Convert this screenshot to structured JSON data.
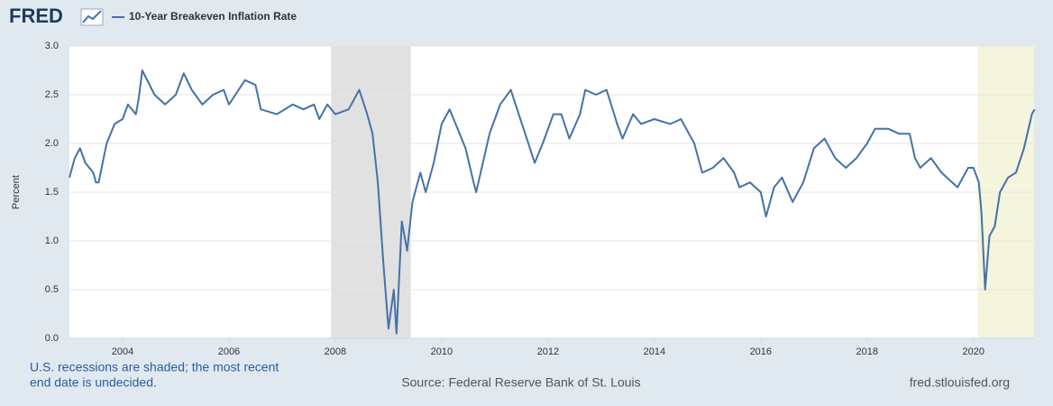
{
  "chart_data": {
    "type": "line",
    "logo": "FRED",
    "ylabel": "Percent",
    "series": [
      {
        "name": "10-Year Breakeven Inflation Rate",
        "color": "#4572a7",
        "x": [
          2003.0,
          2003.1,
          2003.2,
          2003.3,
          2003.45,
          2003.5,
          2003.55,
          2003.7,
          2003.85,
          2004.0,
          2004.1,
          2004.25,
          2004.3,
          2004.37,
          2004.6,
          2004.8,
          2005.0,
          2005.15,
          2005.3,
          2005.5,
          2005.7,
          2005.9,
          2006.0,
          2006.3,
          2006.5,
          2006.6,
          2006.9,
          2007.2,
          2007.4,
          2007.6,
          2007.7,
          2007.85,
          2008.0,
          2008.25,
          2008.45,
          2008.6,
          2008.7,
          2008.8,
          2008.9,
          2009.0,
          2009.1,
          2009.15,
          2009.25,
          2009.35,
          2009.45,
          2009.6,
          2009.7,
          2009.85,
          2010.0,
          2010.15,
          2010.3,
          2010.45,
          2010.6,
          2010.65,
          2010.9,
          2011.1,
          2011.3,
          2011.45,
          2011.6,
          2011.75,
          2011.9,
          2012.1,
          2012.25,
          2012.4,
          2012.6,
          2012.7,
          2012.9,
          2013.1,
          2013.3,
          2013.4,
          2013.6,
          2013.75,
          2014.0,
          2014.3,
          2014.5,
          2014.75,
          2014.9,
          2015.1,
          2015.3,
          2015.5,
          2015.6,
          2015.8,
          2016.0,
          2016.1,
          2016.25,
          2016.4,
          2016.6,
          2016.8,
          2017.0,
          2017.2,
          2017.4,
          2017.6,
          2017.8,
          2018.0,
          2018.15,
          2018.4,
          2018.6,
          2018.8,
          2018.9,
          2019.0,
          2019.2,
          2019.4,
          2019.6,
          2019.7,
          2019.9,
          2020.0,
          2020.1,
          2020.15,
          2020.22,
          2020.3,
          2020.4,
          2020.5,
          2020.65,
          2020.8,
          2020.95,
          2021.1,
          2021.15
        ],
        "values": [
          1.65,
          1.85,
          1.95,
          1.8,
          1.7,
          1.6,
          1.6,
          2.0,
          2.2,
          2.25,
          2.4,
          2.3,
          2.45,
          2.75,
          2.5,
          2.4,
          2.5,
          2.72,
          2.55,
          2.4,
          2.5,
          2.55,
          2.4,
          2.65,
          2.6,
          2.35,
          2.3,
          2.4,
          2.35,
          2.4,
          2.25,
          2.4,
          2.3,
          2.35,
          2.55,
          2.3,
          2.1,
          1.6,
          0.8,
          0.1,
          0.5,
          0.05,
          1.2,
          0.9,
          1.4,
          1.7,
          1.5,
          1.8,
          2.2,
          2.35,
          2.15,
          1.95,
          1.6,
          1.5,
          2.1,
          2.4,
          2.55,
          2.3,
          2.05,
          1.8,
          2.0,
          2.3,
          2.3,
          2.05,
          2.3,
          2.55,
          2.5,
          2.55,
          2.2,
          2.05,
          2.3,
          2.2,
          2.25,
          2.2,
          2.25,
          2.0,
          1.7,
          1.75,
          1.85,
          1.7,
          1.55,
          1.6,
          1.5,
          1.25,
          1.55,
          1.65,
          1.4,
          1.6,
          1.95,
          2.05,
          1.85,
          1.75,
          1.85,
          2.0,
          2.15,
          2.15,
          2.1,
          2.1,
          1.85,
          1.75,
          1.85,
          1.7,
          1.6,
          1.55,
          1.75,
          1.75,
          1.6,
          1.3,
          0.5,
          1.05,
          1.15,
          1.5,
          1.65,
          1.7,
          1.95,
          2.3,
          2.35
        ]
      }
    ],
    "recessions": [
      [
        2007.92,
        2009.42
      ],
      [
        2020.08,
        2021.15
      ]
    ],
    "recession_colors": [
      "#e1e1e1",
      "#f5f4dc"
    ],
    "xlim": [
      2003.0,
      2021.14
    ],
    "xticks": [
      2004,
      2006,
      2008,
      2010,
      2012,
      2014,
      2016,
      2018,
      2020
    ],
    "ylim": [
      0,
      3
    ],
    "yticks": [
      {
        "value": 0,
        "label": "0.0"
      },
      0.5,
      {
        "value": 1,
        "label": "1.0"
      },
      1.5,
      {
        "value": 2,
        "label": "2.0"
      },
      2.5,
      {
        "value": 3,
        "label": "3.0"
      }
    ],
    "grid": true,
    "note": [
      "U.S. recessions are shaded; the most recent",
      "end date is undecided."
    ],
    "source": "Source: Federal Reserve Bank of St. Louis",
    "site": "fred.stlouisfed.org"
  }
}
